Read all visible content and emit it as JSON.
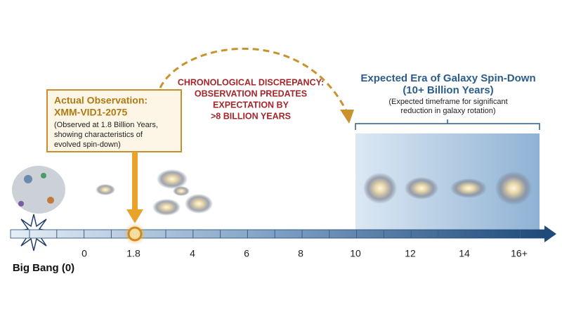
{
  "big_bang_label": "Big Bang (0)",
  "observation": {
    "title": [
      "Actual Observation:",
      "XMM-VID1-2075"
    ],
    "note": [
      "(Observed at 1.8 Billion Years,",
      "showing characteristics of",
      "evolved spin-down)"
    ]
  },
  "discrepancy": {
    "lines": [
      "CHRONOLOGICAL DISCREPANCY:",
      "OBSERVATION PREDATES",
      "EXPECTATION BY",
      ">8 BILLION YEARS"
    ]
  },
  "expected_era": {
    "title": [
      "Expected Era of Galaxy Spin-Down",
      "(10+ Billion Years)"
    ],
    "note": [
      "(Expected timeframe for significant",
      "reduction in galaxy rotation)"
    ]
  },
  "timeline": {
    "ticks": [
      "0",
      "1.8",
      "4",
      "6",
      "8",
      "10",
      "12",
      "14",
      "16+"
    ]
  }
}
